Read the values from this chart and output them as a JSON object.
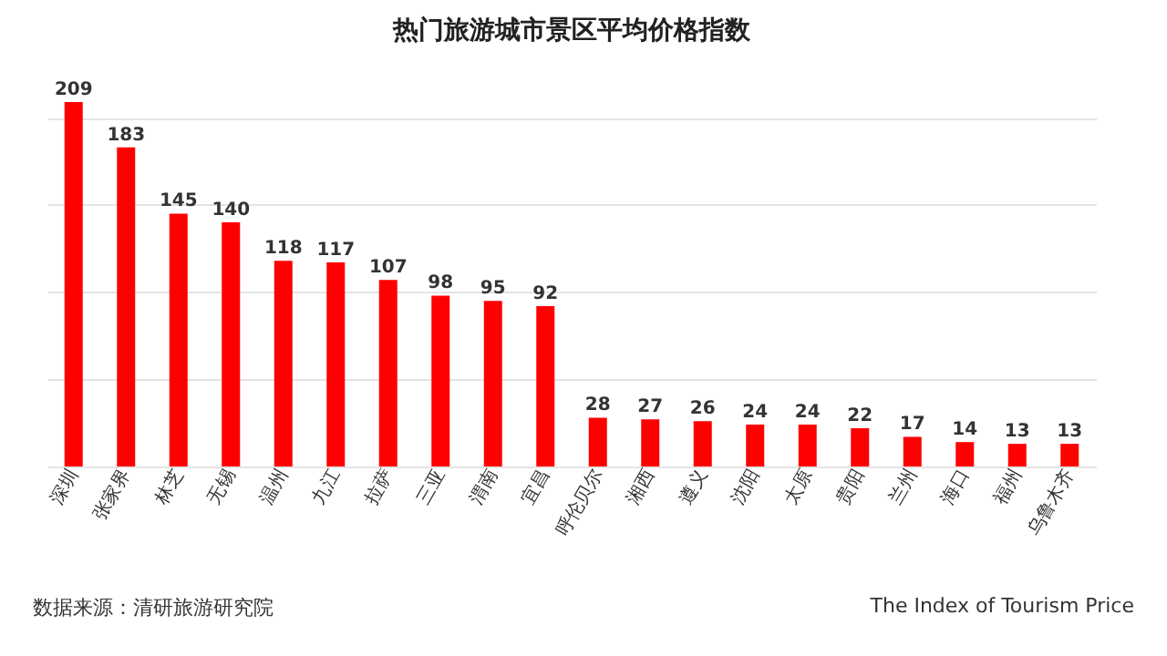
{
  "chart_data": {
    "type": "bar",
    "title": "热门旅游城市景区平均价格指数",
    "categories": [
      "深圳",
      "张家界",
      "林芝",
      "无锡",
      "温州",
      "九江",
      "拉萨",
      "三亚",
      "渭南",
      "宜昌",
      "呼伦贝尔",
      "湘西",
      "遵义",
      "沈阳",
      "太原",
      "贵阳",
      "兰州",
      "海口",
      "福州",
      "乌鲁木齐"
    ],
    "values": [
      209,
      183,
      145,
      140,
      118,
      117,
      107,
      98,
      95,
      92,
      28,
      27,
      26,
      24,
      24,
      22,
      17,
      14,
      13,
      13
    ],
    "color": "#ff0000",
    "data_labels": true,
    "grid": "y",
    "tick_labels": "x",
    "yticks": [
      {
        "value": 0,
        "label": null
      },
      {
        "value": 50,
        "label": null
      },
      {
        "value": 100,
        "label": null
      },
      {
        "value": 150,
        "label": null
      },
      {
        "value": 200,
        "label": null
      }
    ],
    "annotations": [
      "数据来源：清研旅游研究院",
      "The Index of Tourism Price"
    ]
  }
}
